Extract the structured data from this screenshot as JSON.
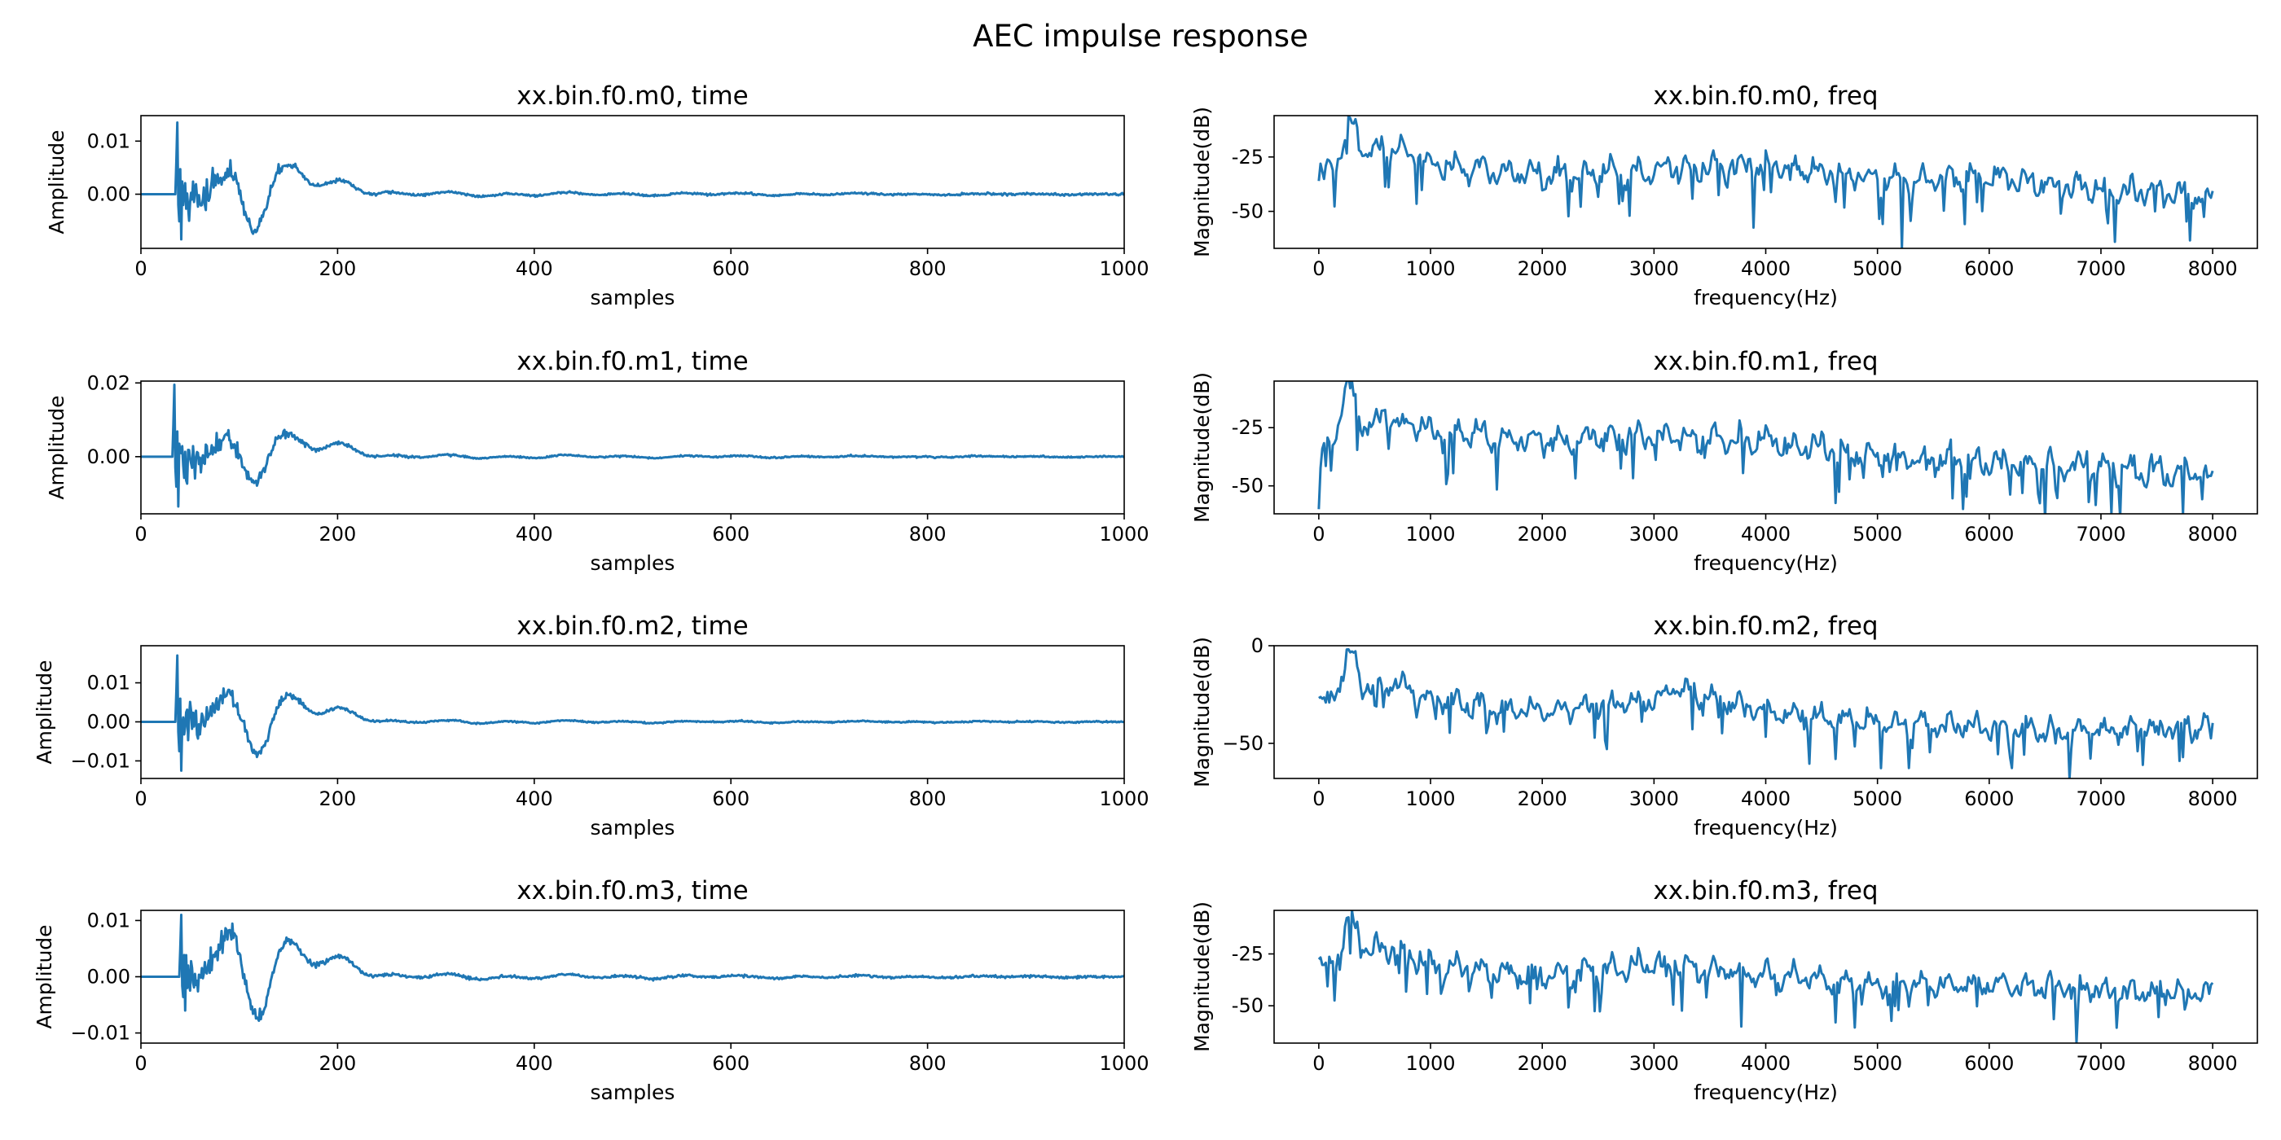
{
  "figure": {
    "title": "AEC impulse response"
  },
  "style": {
    "line_color": "#1f77b4",
    "axis_color": "#000000",
    "background": "#ffffff"
  },
  "chart_data": [
    {
      "type": "line",
      "title": "xx.bin.f0.m0, time",
      "xlabel": "samples",
      "ylabel": "Amplitude",
      "xlim": [
        0,
        1000
      ],
      "ylim": [
        -0.0102,
        0.0148
      ],
      "xticks": [
        0,
        200,
        400,
        600,
        800,
        1000
      ],
      "xtick_labels": [
        "0",
        "200",
        "400",
        "600",
        "800",
        "1000"
      ],
      "yticks": [
        0.0,
        0.01
      ],
      "ytick_labels": [
        "0.00",
        "0.01"
      ],
      "signal": {
        "onset": 36,
        "peak": 0.0135,
        "first_dip": -0.0085,
        "slow_lobes": [
          [
            95,
            0.0055
          ],
          [
            115,
            -0.0085
          ],
          [
            150,
            0.0055
          ],
          [
            205,
            0.0025
          ]
        ],
        "tail_level": 0.0006
      }
    },
    {
      "type": "line",
      "title": "xx.bin.f0.m0, freq",
      "xlabel": "frequency(Hz)",
      "ylabel": "Magnitude(dB)",
      "xlim": [
        -400,
        8400
      ],
      "ylim": [
        -67,
        -6
      ],
      "xticks": [
        0,
        1000,
        2000,
        3000,
        4000,
        5000,
        6000,
        7000,
        8000
      ],
      "xtick_labels": [
        "0",
        "1000",
        "2000",
        "3000",
        "4000",
        "5000",
        "6000",
        "7000",
        "8000"
      ],
      "yticks": [
        -25,
        -50
      ],
      "ytick_labels": [
        "-25",
        "-50"
      ],
      "spectrum": {
        "peak_freq": 280,
        "peak_db": -9,
        "baseline": [
          [
            0,
            -34
          ],
          [
            600,
            -20
          ],
          [
            1000,
            -28
          ],
          [
            2000,
            -34
          ],
          [
            3000,
            -31
          ],
          [
            4000,
            -29
          ],
          [
            5000,
            -35
          ],
          [
            6000,
            -34
          ],
          [
            7000,
            -40
          ],
          [
            8000,
            -43
          ]
        ],
        "deep_notches": [
          [
            5220,
            -67
          ],
          [
            2780,
            -52
          ]
        ]
      }
    },
    {
      "type": "line",
      "title": "xx.bin.f0.m1, time",
      "xlabel": "samples",
      "ylabel": "Amplitude",
      "xlim": [
        0,
        1000
      ],
      "ylim": [
        -0.0155,
        0.0205
      ],
      "xticks": [
        0,
        200,
        400,
        600,
        800,
        1000
      ],
      "xtick_labels": [
        "0",
        "200",
        "400",
        "600",
        "800",
        "1000"
      ],
      "yticks": [
        0.0,
        0.02
      ],
      "ytick_labels": [
        "0.00",
        "0.02"
      ],
      "signal": {
        "onset": 33,
        "peak": 0.0195,
        "first_dip": -0.0135,
        "slow_lobes": [
          [
            90,
            0.0065
          ],
          [
            115,
            -0.008
          ],
          [
            150,
            0.006
          ],
          [
            205,
            0.0035
          ]
        ],
        "tail_level": 0.0007
      }
    },
    {
      "type": "line",
      "title": "xx.bin.f0.m1, freq",
      "xlabel": "frequency(Hz)",
      "ylabel": "Magnitude(dB)",
      "xlim": [
        -400,
        8400
      ],
      "ylim": [
        -62,
        -5
      ],
      "xticks": [
        0,
        1000,
        2000,
        3000,
        4000,
        5000,
        6000,
        7000,
        8000
      ],
      "xtick_labels": [
        "0",
        "1000",
        "2000",
        "3000",
        "4000",
        "5000",
        "6000",
        "7000",
        "8000"
      ],
      "yticks": [
        -25,
        -50
      ],
      "ytick_labels": [
        "-25",
        "-50"
      ],
      "spectrum": {
        "peak_freq": 260,
        "peak_db": -8,
        "baseline": [
          [
            0,
            -36
          ],
          [
            600,
            -20
          ],
          [
            1000,
            -27
          ],
          [
            2000,
            -31
          ],
          [
            3000,
            -28
          ],
          [
            4000,
            -31
          ],
          [
            5000,
            -38
          ],
          [
            6000,
            -40
          ],
          [
            7000,
            -42
          ],
          [
            8000,
            -46
          ]
        ],
        "deep_notches": [
          [
            0,
            -60
          ],
          [
            7100,
            -62
          ],
          [
            7730,
            -62
          ]
        ]
      }
    },
    {
      "type": "line",
      "title": "xx.bin.f0.m2, time",
      "xlabel": "samples",
      "ylabel": "Amplitude",
      "xlim": [
        0,
        1000
      ],
      "ylim": [
        -0.0145,
        0.0195
      ],
      "xticks": [
        0,
        200,
        400,
        600,
        800,
        1000
      ],
      "xtick_labels": [
        "0",
        "200",
        "400",
        "600",
        "800",
        "1000"
      ],
      "yticks": [
        0.01,
        0.0,
        -0.01
      ],
      "ytick_labels": [
        "0.01",
        "0.00",
        "−0.01"
      ],
      "signal": {
        "onset": 36,
        "peak": 0.017,
        "first_dip": -0.0125,
        "slow_lobes": [
          [
            90,
            0.0075
          ],
          [
            120,
            -0.0095
          ],
          [
            150,
            0.007
          ],
          [
            205,
            0.0035
          ]
        ],
        "tail_level": 0.0006
      }
    },
    {
      "type": "line",
      "title": "xx.bin.f0.m2, freq",
      "xlabel": "frequency(Hz)",
      "ylabel": "Magnitude(dB)",
      "xlim": [
        -400,
        8400
      ],
      "ylim": [
        -68,
        0
      ],
      "xticks": [
        0,
        1000,
        2000,
        3000,
        4000,
        5000,
        6000,
        7000,
        8000
      ],
      "xtick_labels": [
        "0",
        "1000",
        "2000",
        "3000",
        "4000",
        "5000",
        "6000",
        "7000",
        "8000"
      ],
      "yticks": [
        0,
        -50
      ],
      "ytick_labels": [
        "0",
        "−50"
      ],
      "spectrum": {
        "peak_freq": 270,
        "peak_db": -5,
        "baseline": [
          [
            0,
            -30
          ],
          [
            600,
            -18
          ],
          [
            1000,
            -28
          ],
          [
            2000,
            -34
          ],
          [
            3000,
            -28
          ],
          [
            3200,
            -22
          ],
          [
            4000,
            -34
          ],
          [
            5000,
            -40
          ],
          [
            6000,
            -42
          ],
          [
            7000,
            -44
          ],
          [
            8000,
            -40
          ]
        ],
        "deep_notches": [
          [
            6720,
            -68
          ],
          [
            4630,
            -58
          ],
          [
            7710,
            -59
          ]
        ]
      }
    },
    {
      "type": "line",
      "title": "xx.bin.f0.m3, time",
      "xlabel": "samples",
      "ylabel": "Amplitude",
      "xlim": [
        0,
        1000
      ],
      "ylim": [
        -0.0118,
        0.0118
      ],
      "xticks": [
        0,
        200,
        400,
        600,
        800,
        1000
      ],
      "xtick_labels": [
        "0",
        "200",
        "400",
        "600",
        "800",
        "1000"
      ],
      "yticks": [
        0.01,
        0.0,
        -0.01
      ],
      "ytick_labels": [
        "0.01",
        "0.00",
        "−0.01"
      ],
      "signal": {
        "onset": 40,
        "peak": 0.011,
        "first_dip": -0.006,
        "slow_lobes": [
          [
            92,
            0.009
          ],
          [
            120,
            -0.009
          ],
          [
            150,
            0.0065
          ],
          [
            205,
            0.0035
          ]
        ],
        "tail_level": 0.0007
      }
    },
    {
      "type": "line",
      "title": "xx.bin.f0.m3, freq",
      "xlabel": "frequency(Hz)",
      "ylabel": "Magnitude(dB)",
      "xlim": [
        -400,
        8400
      ],
      "ylim": [
        -68,
        -4
      ],
      "xticks": [
        0,
        1000,
        2000,
        3000,
        4000,
        5000,
        6000,
        7000,
        8000
      ],
      "xtick_labels": [
        "0",
        "1000",
        "2000",
        "3000",
        "4000",
        "5000",
        "6000",
        "7000",
        "8000"
      ],
      "yticks": [
        -25,
        -50
      ],
      "ytick_labels": [
        "-25",
        "-50"
      ],
      "spectrum": {
        "peak_freq": 280,
        "peak_db": -8,
        "baseline": [
          [
            0,
            -32
          ],
          [
            600,
            -22
          ],
          [
            1000,
            -30
          ],
          [
            2000,
            -36
          ],
          [
            3000,
            -30
          ],
          [
            4000,
            -35
          ],
          [
            5000,
            -40
          ],
          [
            6000,
            -40
          ],
          [
            7000,
            -42
          ],
          [
            8000,
            -44
          ]
        ],
        "deep_notches": [
          [
            6780,
            -68
          ],
          [
            3780,
            -60
          ],
          [
            4620,
            -58
          ]
        ]
      }
    }
  ]
}
